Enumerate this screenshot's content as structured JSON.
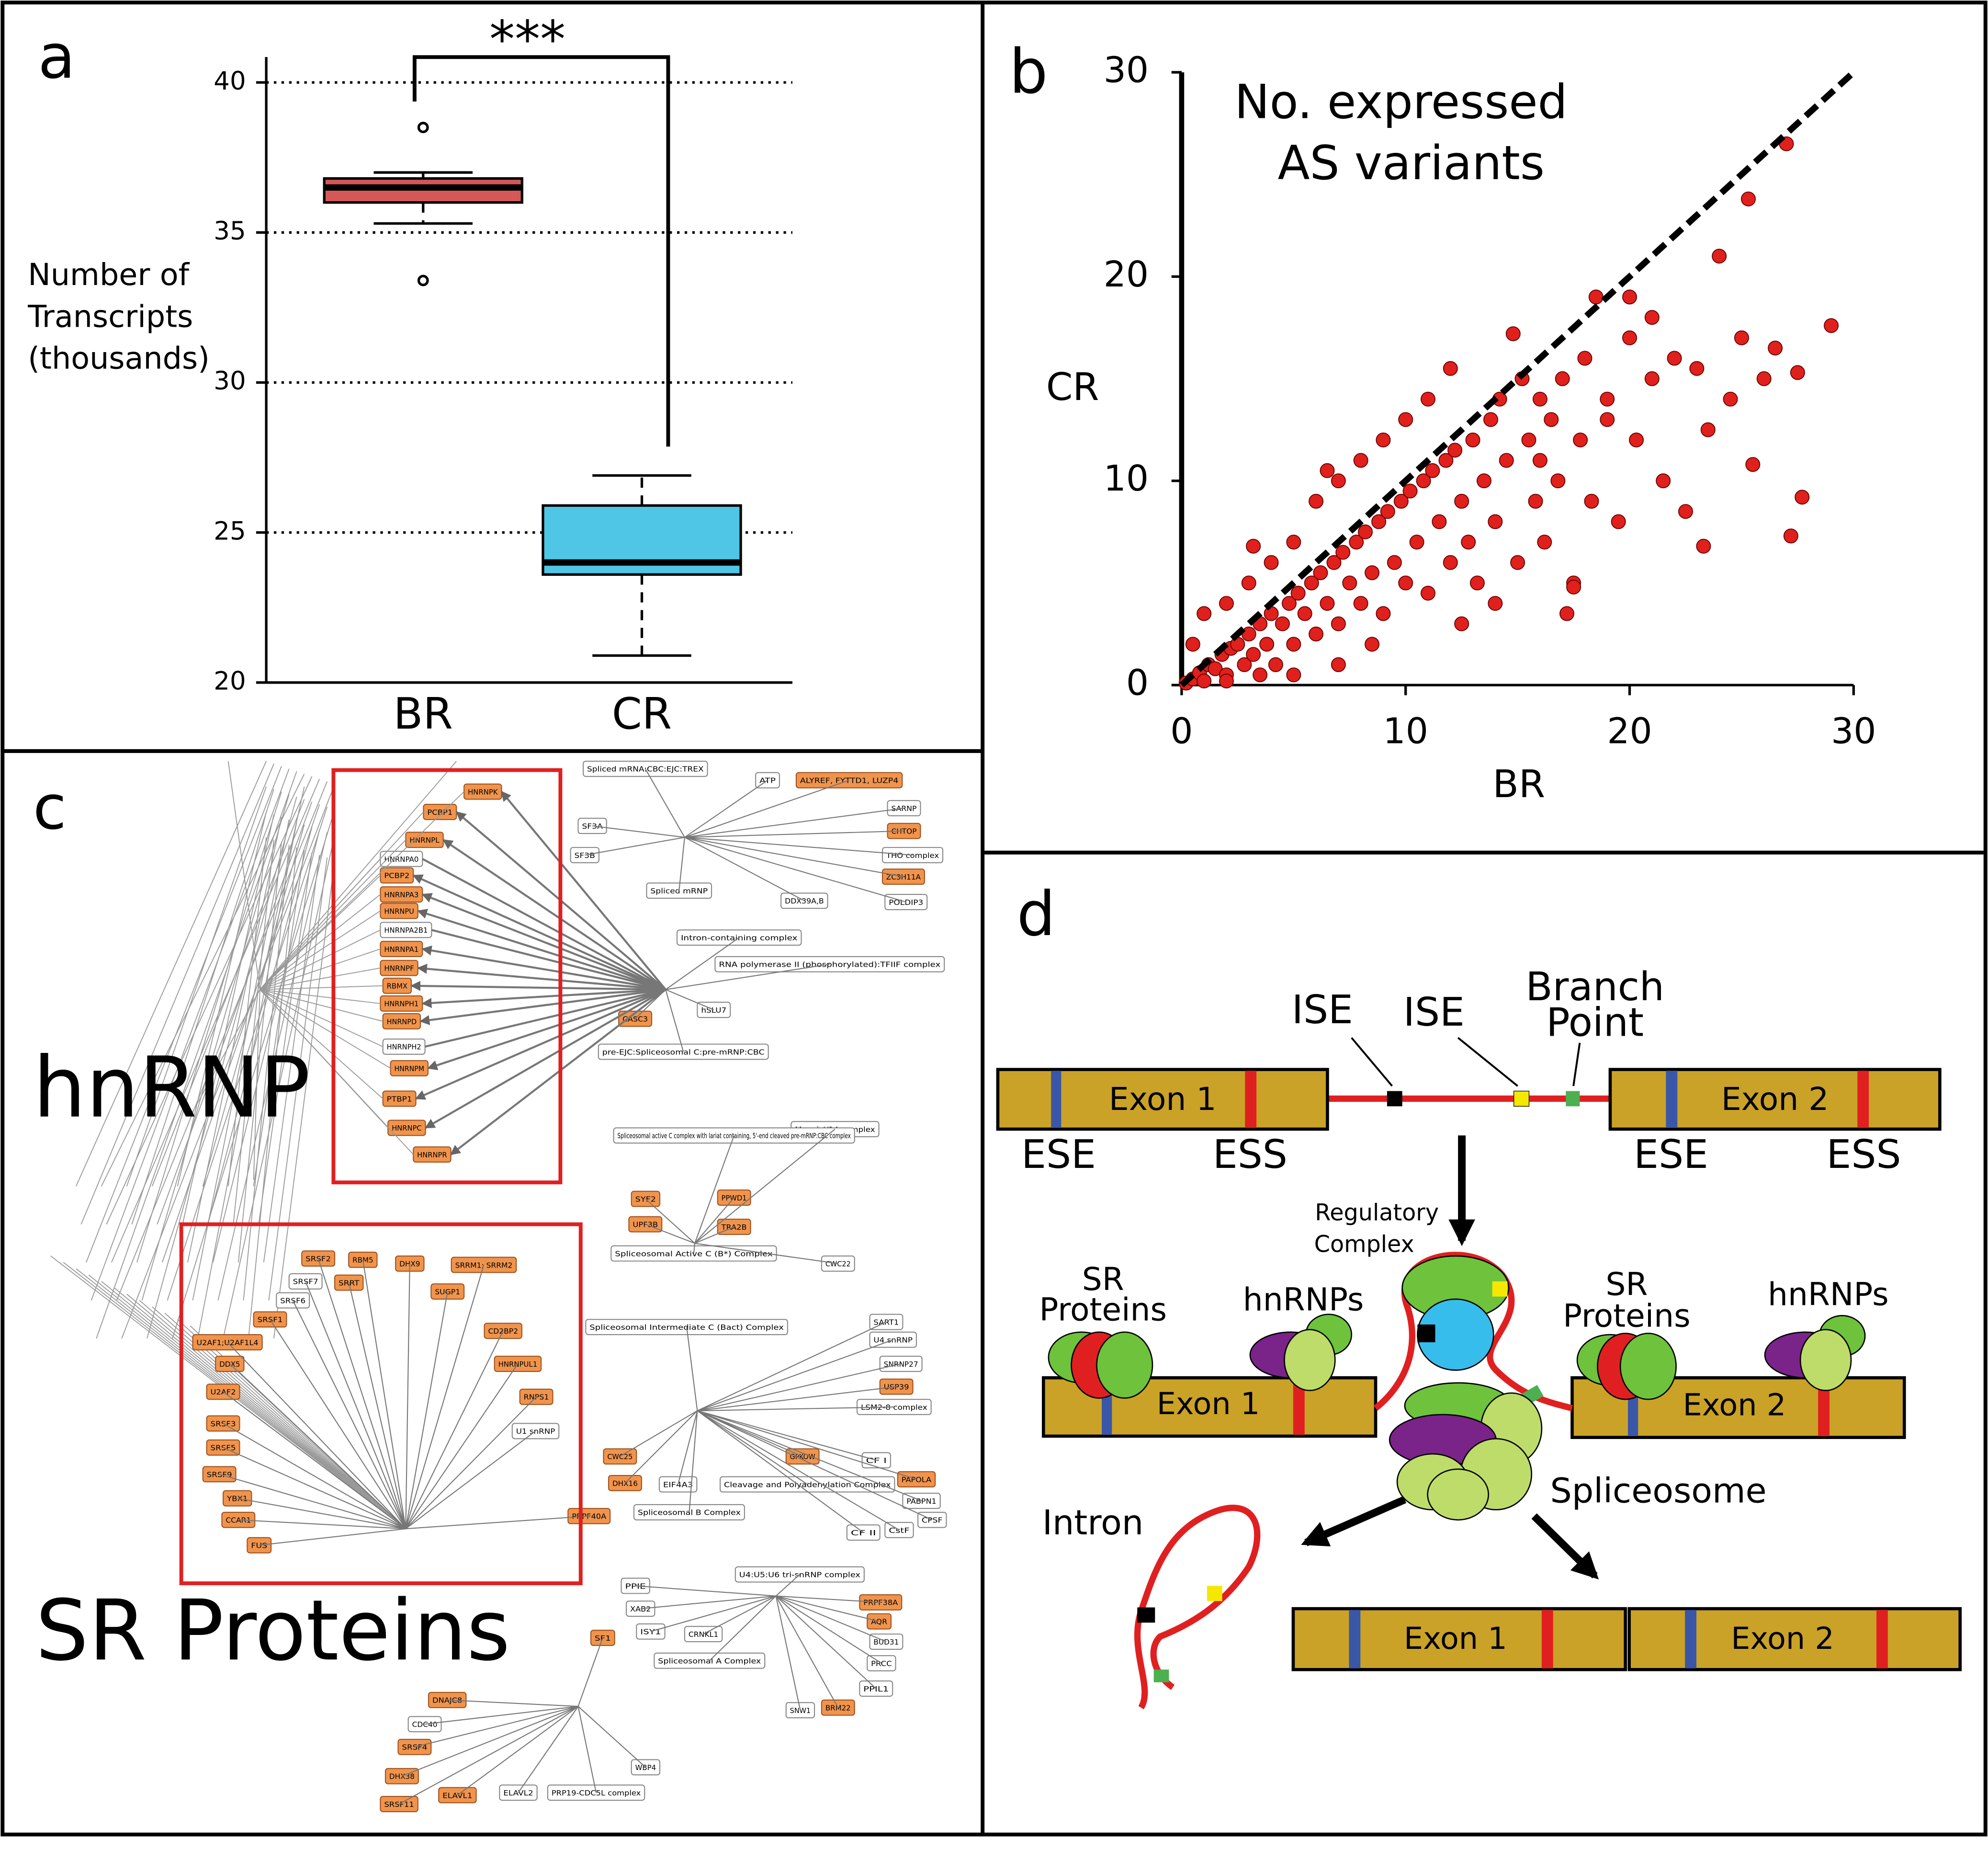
{
  "panel_labels": [
    "a",
    "b",
    "c",
    "d"
  ],
  "chart_data": [
    {
      "type": "box",
      "ylabel": [
        "Number of",
        "Transcripts",
        "(thousands)"
      ],
      "categories": [
        "BR",
        "CR"
      ],
      "annotation": "***",
      "boxes": [
        {
          "min": 35.3,
          "q1": 36.0,
          "median": 36.5,
          "q3": 36.8,
          "max": 37.0,
          "outliers": [
            38.5,
            33.4
          ]
        },
        {
          "min": 20.9,
          "q1": 23.6,
          "median": 24.0,
          "q3": 25.9,
          "max": 26.9,
          "outliers": []
        }
      ],
      "colors": [
        "#d45858",
        "#4fc6e6"
      ],
      "ylim": [
        20,
        40
      ],
      "yticks": [
        20,
        25,
        30,
        35,
        40
      ],
      "grid": true
    },
    {
      "type": "scatter",
      "title": [
        "No. expressed",
        "AS variants"
      ],
      "xlabel": "BR",
      "ylabel": "CR",
      "color": "#e0201c",
      "xlim": [
        0,
        30
      ],
      "ylim": [
        0,
        30
      ],
      "xticks": [
        0,
        10,
        20,
        30
      ],
      "yticks": [
        0,
        10,
        20,
        30
      ],
      "x": [
        0.2,
        0.5,
        0.8,
        1,
        1.2,
        1.5,
        1.8,
        2,
        2.2,
        2.5,
        2.8,
        3,
        3.2,
        3.5,
        3.8,
        4,
        4.2,
        4.5,
        4.8,
        5,
        5.2,
        5.5,
        5.8,
        6,
        6.2,
        6.5,
        6.8,
        7,
        7.2,
        7.5,
        7.8,
        8,
        8.2,
        8.5,
        8.8,
        9,
        9.2,
        9.5,
        9.8,
        10,
        10.2,
        10.5,
        10.8,
        11,
        11.2,
        11.5,
        11.8,
        12,
        12.2,
        12.5,
        12.8,
        13,
        13.2,
        13.5,
        13.8,
        14,
        14.2,
        14.5,
        14.8,
        15,
        15.2,
        15.5,
        15.8,
        16,
        16.2,
        16.5,
        16.8,
        17,
        17.2,
        17.5,
        17.8,
        18,
        18.3,
        18.5,
        19,
        19.5,
        20,
        20.3,
        21,
        21.5,
        22,
        22.5,
        23,
        23.3,
        23.5,
        24,
        24.5,
        25,
        25.3,
        25.5,
        26,
        26.5,
        27,
        27.2,
        27.5,
        27.7,
        29,
        1,
        2,
        3,
        4,
        5,
        6,
        7,
        6.5,
        8,
        9,
        10,
        3.2,
        0.5,
        11,
        12,
        8.5,
        5,
        7,
        2,
        3.5,
        12.5,
        14,
        16,
        17.5,
        19,
        20,
        21
      ],
      "y": [
        0.1,
        0.3,
        0.6,
        0.2,
        1,
        0.8,
        1.5,
        0.5,
        1.8,
        2,
        1,
        2.5,
        1.5,
        3,
        2,
        3.5,
        1,
        3,
        4,
        2,
        4.5,
        3.5,
        5,
        2.5,
        5.5,
        4,
        6,
        3,
        6.5,
        5,
        7,
        4,
        7.5,
        5.5,
        8,
        3.5,
        8.5,
        6,
        9,
        5,
        9.5,
        7,
        10,
        4.5,
        10.5,
        8,
        11,
        6,
        11.5,
        9,
        7,
        12,
        5,
        10,
        13,
        8,
        14,
        11,
        17.2,
        6,
        15,
        12,
        9,
        14,
        7,
        13,
        10,
        15,
        3.5,
        5,
        12,
        16,
        9,
        19,
        14,
        8,
        17,
        12,
        15,
        10,
        16,
        8.5,
        15.5,
        6.8,
        12.5,
        21,
        14,
        17,
        23.8,
        10.8,
        15,
        16.5,
        26.5,
        7.3,
        15.3,
        9.2,
        17.6,
        3.5,
        4,
        5,
        6,
        7,
        9,
        10,
        10.5,
        11,
        12,
        13,
        6.8,
        2,
        14,
        15.5,
        2,
        0.5,
        1,
        0.2,
        0.5,
        3,
        4,
        11,
        4.8,
        13,
        19,
        18
      ]
    }
  ],
  "pathway": {
    "labels": [
      "hnRNP",
      "SR Proteins"
    ],
    "nodes": [
      {
        "label": "HNRNPK",
        "color": "#f0944d"
      },
      {
        "label": "PCBP1",
        "color": "#f0944d"
      },
      {
        "label": "HNRNPL",
        "color": "#f0944d"
      },
      {
        "label": "HNRNPA0",
        "color": "#ffffff"
      },
      {
        "label": "PCBP2",
        "color": "#f0944d"
      },
      {
        "label": "HNRNPA3",
        "color": "#f0944d"
      },
      {
        "label": "HNRNPU",
        "color": "#f0944d"
      },
      {
        "label": "HNRNPA2B1",
        "color": "#ffffff"
      },
      {
        "label": "HNRNPA1",
        "color": "#f0944d"
      },
      {
        "label": "HNRNPF",
        "color": "#f0944d"
      },
      {
        "label": "RBMX",
        "color": "#f0944d"
      },
      {
        "label": "HNRNPH1",
        "color": "#f0944d"
      },
      {
        "label": "HNRNPD",
        "color": "#f0944d"
      },
      {
        "label": "HNRNPH2",
        "color": "#ffffff"
      },
      {
        "label": "HNRNPM",
        "color": "#f0944d"
      },
      {
        "label": "PTBP1",
        "color": "#f0944d"
      },
      {
        "label": "HNRNPC",
        "color": "#f0944d"
      },
      {
        "label": "HNRNPR",
        "color": "#f0944d"
      },
      {
        "label": "Spliced mRNA:CBC:EJC:TREX",
        "color": "#ffffff"
      },
      {
        "label": "ATP",
        "color": "#ffffff"
      },
      {
        "label": "ALYREF, FYTTD1, LUZP4",
        "color": "#f0944d"
      },
      {
        "label": "SARNP",
        "color": "#ffffff"
      },
      {
        "label": "SF3A",
        "color": "#ffffff"
      },
      {
        "label": "CHTOP",
        "color": "#f0944d"
      },
      {
        "label": "SF3B",
        "color": "#ffffff"
      },
      {
        "label": "THO complex",
        "color": "#ffffff"
      },
      {
        "label": "ZC3H11A",
        "color": "#f0944d"
      },
      {
        "label": "Spliced mRNP",
        "color": "#ffffff"
      },
      {
        "label": "DDX39A,B",
        "color": "#ffffff"
      },
      {
        "label": "POLDIP3",
        "color": "#ffffff"
      },
      {
        "label": "Intron-containing complex",
        "color": "#ffffff"
      },
      {
        "label": "RNA polymerase II (phosphorylated):TFIIF complex",
        "color": "#ffffff"
      },
      {
        "label": "CASC3",
        "color": "#f0944d"
      },
      {
        "label": "hSLU7",
        "color": "#ffffff"
      },
      {
        "label": "pre-EJC:Spliceosomal C:pre-mRNP:CBC",
        "color": "#ffffff"
      },
      {
        "label": "Magoh-Y14 complex",
        "color": "#ffffff"
      },
      {
        "label": "Spliceosomal active C complex with lariat containing, 5'-end cleaved pre-mRNP:CBC complex",
        "color": "#ffffff"
      },
      {
        "label": "SYF2",
        "color": "#f0944d"
      },
      {
        "label": "PPWD1",
        "color": "#f0944d"
      },
      {
        "label": "UPF3B",
        "color": "#f0944d"
      },
      {
        "label": "TRA2B",
        "color": "#f0944d"
      },
      {
        "label": "Spliceosomal Active C (B*) Complex",
        "color": "#ffffff"
      },
      {
        "label": "CWC22",
        "color": "#ffffff"
      },
      {
        "label": "Spliceosomal Intermediate C (Bact) Complex",
        "color": "#ffffff"
      },
      {
        "label": "SART1",
        "color": "#ffffff"
      },
      {
        "label": "U4 snRNP",
        "color": "#ffffff"
      },
      {
        "label": "SNRNP27",
        "color": "#ffffff"
      },
      {
        "label": "USP39",
        "color": "#f0944d"
      },
      {
        "label": "LSM2-8 complex",
        "color": "#ffffff"
      },
      {
        "label": "SRSF2",
        "color": "#f0944d"
      },
      {
        "label": "RBM5",
        "color": "#f0944d"
      },
      {
        "label": "DHX9",
        "color": "#f0944d"
      },
      {
        "label": "SRRM1; SRRM2",
        "color": "#f0944d"
      },
      {
        "label": "SRSF7",
        "color": "#ffffff"
      },
      {
        "label": "SRRT",
        "color": "#f0944d"
      },
      {
        "label": "SUGP1",
        "color": "#f0944d"
      },
      {
        "label": "SRSF6",
        "color": "#ffffff"
      },
      {
        "label": "SRSF1",
        "color": "#f0944d"
      },
      {
        "label": "U2AF1;U2AF1L4",
        "color": "#f0944d"
      },
      {
        "label": "CD2BP2",
        "color": "#f0944d"
      },
      {
        "label": "DDX5",
        "color": "#f0944d"
      },
      {
        "label": "HNRNPUL1",
        "color": "#f0944d"
      },
      {
        "label": "U2AF2",
        "color": "#f0944d"
      },
      {
        "label": "RNPS1",
        "color": "#f0944d"
      },
      {
        "label": "SRSF3",
        "color": "#f0944d"
      },
      {
        "label": "U1 snRNP",
        "color": "#ffffff"
      },
      {
        "label": "SRSF5",
        "color": "#f0944d"
      },
      {
        "label": "SRSF9",
        "color": "#f0944d"
      },
      {
        "label": "YBX1",
        "color": "#f0944d"
      },
      {
        "label": "CCAR1",
        "color": "#f0944d"
      },
      {
        "label": "FUS",
        "color": "#f0944d"
      },
      {
        "label": "PRPF40A",
        "color": "#f0944d"
      },
      {
        "label": "CWC25",
        "color": "#f0944d"
      },
      {
        "label": "GPKOW",
        "color": "#f0944d"
      },
      {
        "label": "CF I",
        "color": "#ffffff"
      },
      {
        "label": "DHX16",
        "color": "#f0944d"
      },
      {
        "label": "EIF4A3",
        "color": "#ffffff"
      },
      {
        "label": "Cleavage and Polyadenylation Complex",
        "color": "#ffffff"
      },
      {
        "label": "PAPOLA",
        "color": "#f0944d"
      },
      {
        "label": "PABPN1",
        "color": "#ffffff"
      },
      {
        "label": "Spliceosomal B Complex",
        "color": "#ffffff"
      },
      {
        "label": "CPSF",
        "color": "#ffffff"
      },
      {
        "label": "CF II",
        "color": "#ffffff"
      },
      {
        "label": "CstF",
        "color": "#ffffff"
      },
      {
        "label": "U4:U5:U6 tri-snRNP complex",
        "color": "#ffffff"
      },
      {
        "label": "PPIE",
        "color": "#ffffff"
      },
      {
        "label": "PRPF38A",
        "color": "#f0944d"
      },
      {
        "label": "XAB2",
        "color": "#ffffff"
      },
      {
        "label": "AQR",
        "color": "#f0944d"
      },
      {
        "label": "ISY1",
        "color": "#ffffff"
      },
      {
        "label": "CRNKL1",
        "color": "#ffffff"
      },
      {
        "label": "SF1",
        "color": "#f0944d"
      },
      {
        "label": "BUD31",
        "color": "#ffffff"
      },
      {
        "label": "Spliceosomal A Complex",
        "color": "#ffffff"
      },
      {
        "label": "PRCC",
        "color": "#ffffff"
      },
      {
        "label": "PPIL1",
        "color": "#ffffff"
      },
      {
        "label": "DNAJC8",
        "color": "#f0944d"
      },
      {
        "label": "SNW1",
        "color": "#ffffff"
      },
      {
        "label": "BRM22",
        "color": "#f0944d"
      },
      {
        "label": "CDC40",
        "color": "#ffffff"
      },
      {
        "label": "SRSF4",
        "color": "#f0944d"
      },
      {
        "label": "WBP4",
        "color": "#ffffff"
      },
      {
        "label": "DHX38",
        "color": "#f0944d"
      },
      {
        "label": "ELAVL1",
        "color": "#f0944d"
      },
      {
        "label": "ELAVL2",
        "color": "#ffffff"
      },
      {
        "label": "PRP19-CDC5L complex",
        "color": "#ffffff"
      },
      {
        "label": "SRSF11",
        "color": "#f0944d"
      }
    ]
  },
  "diagram": {
    "ise_1": "ISE",
    "ise_2": "ISE",
    "branch_point": [
      "Branch",
      "Point"
    ],
    "exon_1": "Exon 1",
    "exon_2": "Exon 2",
    "ese_1": "ESE",
    "ess_1": "ESS",
    "ese_2": "ESE",
    "ess_2": "ESS",
    "regulatory_complex": [
      "Regulatory",
      "Complex"
    ],
    "sr_proteins_1": [
      "SR",
      "Proteins"
    ],
    "hnrnps_1": "hnRNPs",
    "sr_proteins_2": [
      "SR",
      "Proteins"
    ],
    "hnrnps_2": "hnRNPs",
    "exon_1_bound": "Exon 1",
    "exon_2_bound": "Exon 2",
    "spliceosome": "Spliceosome",
    "intron": "Intron",
    "exon_1_spliced": "Exon 1",
    "exon_2_spliced": "Exon 2"
  }
}
